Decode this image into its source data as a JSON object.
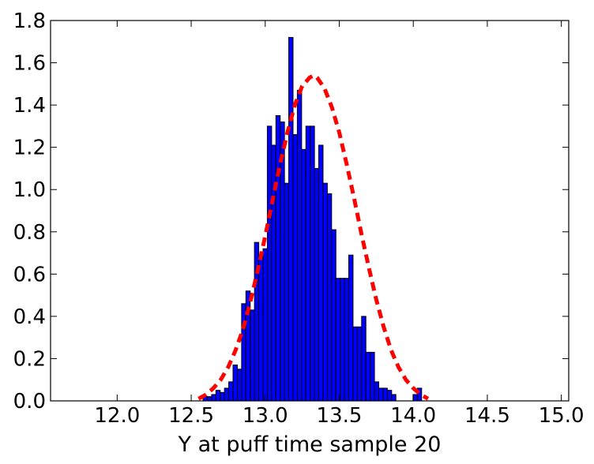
{
  "chart_data": {
    "type": "bar",
    "xlabel": "Y at puff time sample 20",
    "ylabel": "",
    "xlim": [
      11.55,
      15.05
    ],
    "ylim": [
      0.0,
      1.8
    ],
    "grid": false,
    "xticks": [
      12.0,
      12.5,
      13.0,
      13.5,
      14.0,
      14.5,
      15.0
    ],
    "xtick_labels": [
      "12.0",
      "12.5",
      "13.0",
      "13.5",
      "14.0",
      "14.5",
      "15.0"
    ],
    "yticks": [
      0.0,
      0.2,
      0.4,
      0.6,
      0.8,
      1.0,
      1.2,
      1.4,
      1.6,
      1.8
    ],
    "ytick_labels": [
      "0.0",
      "0.2",
      "0.4",
      "0.6",
      "0.8",
      "1.0",
      "1.2",
      "1.4",
      "1.6",
      "1.8"
    ],
    "colors": {
      "bars": "#0000ff",
      "bar_edge": "#000000",
      "fit_curve": "#ff0000"
    },
    "histogram": {
      "bin_start": 12.58,
      "bin_width": 0.028947,
      "values": [
        0.02,
        0.02,
        0.03,
        0.05,
        0.04,
        0.06,
        0.09,
        0.17,
        0.15,
        0.46,
        0.52,
        0.43,
        0.75,
        0.69,
        0.72,
        1.3,
        1.21,
        1.35,
        1.32,
        1.03,
        1.72,
        1.26,
        1.47,
        1.19,
        1.3,
        1.3,
        1.1,
        1.21,
        1.03,
        0.98,
        0.81,
        0.58,
        0.58,
        0.58,
        0.69,
        0.35,
        0.35,
        0.4,
        0.23,
        0.23,
        0.09,
        0.06,
        0.06,
        0.05,
        0.03,
        0.0,
        0.0,
        0.0,
        0.0,
        0.03,
        0.06
      ]
    },
    "fit_curve": {
      "style": "dashed",
      "x": [
        12.55,
        12.6,
        12.65,
        12.7,
        12.75,
        12.8,
        12.85,
        12.9,
        12.95,
        13.0,
        13.05,
        13.1,
        13.15,
        13.2,
        13.25,
        13.3,
        13.33,
        13.35,
        13.4,
        13.45,
        13.5,
        13.55,
        13.6,
        13.65,
        13.7,
        13.75,
        13.8,
        13.85,
        13.9,
        13.95,
        14.0,
        14.05,
        14.1
      ],
      "y": [
        0.01,
        0.03,
        0.06,
        0.1,
        0.16,
        0.24,
        0.34,
        0.47,
        0.62,
        0.78,
        0.95,
        1.12,
        1.27,
        1.4,
        1.49,
        1.53,
        1.54,
        1.53,
        1.48,
        1.39,
        1.27,
        1.12,
        0.96,
        0.79,
        0.63,
        0.48,
        0.35,
        0.24,
        0.16,
        0.1,
        0.06,
        0.03,
        0.01
      ]
    }
  }
}
